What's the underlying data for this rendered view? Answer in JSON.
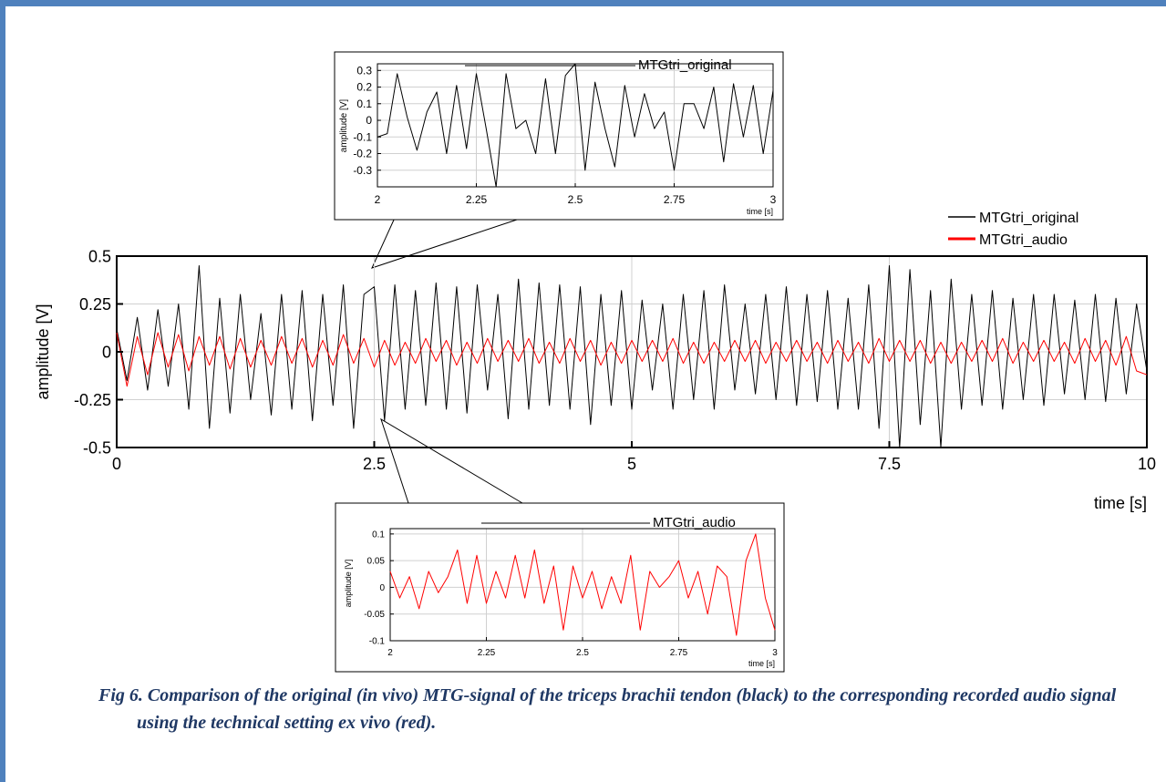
{
  "chart_data": [
    {
      "id": "main",
      "type": "line",
      "title": "",
      "xlabel": "time [s]",
      "ylabel": "amplitude [V]",
      "xlim": [
        0,
        10
      ],
      "ylim": [
        -0.5,
        0.5
      ],
      "xticks": [
        "0",
        "2.5",
        "5",
        "7.5",
        "10"
      ],
      "yticks": [
        "0.5",
        "0.25",
        "0",
        "-0.25",
        "-0.5"
      ],
      "grid": true,
      "legend_position": "top-right",
      "series": [
        {
          "name": "MTGtri_original",
          "color": "#000000",
          "x": [
            0,
            0.1,
            0.2,
            0.3,
            0.4,
            0.5,
            0.6,
            0.7,
            0.8,
            0.9,
            1.0,
            1.1,
            1.2,
            1.3,
            1.4,
            1.5,
            1.6,
            1.7,
            1.8,
            1.9,
            2.0,
            2.1,
            2.2,
            2.3,
            2.4,
            2.5,
            2.6,
            2.7,
            2.8,
            2.9,
            3.0,
            3.1,
            3.2,
            3.3,
            3.4,
            3.5,
            3.6,
            3.7,
            3.8,
            3.9,
            4.0,
            4.1,
            4.2,
            4.3,
            4.4,
            4.5,
            4.6,
            4.7,
            4.8,
            4.9,
            5.0,
            5.1,
            5.2,
            5.3,
            5.4,
            5.5,
            5.6,
            5.7,
            5.8,
            5.9,
            6.0,
            6.1,
            6.2,
            6.3,
            6.4,
            6.5,
            6.6,
            6.7,
            6.8,
            6.9,
            7.0,
            7.1,
            7.2,
            7.3,
            7.4,
            7.5,
            7.6,
            7.7,
            7.8,
            7.9,
            8.0,
            8.1,
            8.2,
            8.3,
            8.4,
            8.5,
            8.6,
            8.7,
            8.8,
            8.9,
            9.0,
            9.1,
            9.2,
            9.3,
            9.4,
            9.5,
            9.6,
            9.7,
            9.8,
            9.9,
            10.0
          ],
          "y": [
            0.12,
            -0.15,
            0.18,
            -0.2,
            0.22,
            -0.18,
            0.25,
            -0.3,
            0.45,
            -0.4,
            0.28,
            -0.32,
            0.3,
            -0.25,
            0.2,
            -0.33,
            0.3,
            -0.3,
            0.32,
            -0.36,
            0.3,
            -0.28,
            0.35,
            -0.4,
            0.3,
            0.34,
            -0.36,
            0.35,
            -0.3,
            0.32,
            -0.28,
            0.36,
            -0.3,
            0.34,
            -0.32,
            0.35,
            -0.2,
            0.3,
            -0.35,
            0.38,
            -0.3,
            0.36,
            -0.28,
            0.35,
            -0.3,
            0.34,
            -0.38,
            0.3,
            -0.28,
            0.32,
            -0.3,
            0.27,
            -0.2,
            0.25,
            -0.3,
            0.3,
            -0.25,
            0.32,
            -0.3,
            0.35,
            -0.2,
            0.25,
            -0.22,
            0.3,
            -0.25,
            0.34,
            -0.28,
            0.3,
            -0.26,
            0.32,
            -0.3,
            0.28,
            -0.3,
            0.35,
            -0.4,
            0.45,
            -0.5,
            0.43,
            -0.38,
            0.32,
            -0.5,
            0.38,
            -0.3,
            0.3,
            -0.28,
            0.32,
            -0.3,
            0.28,
            -0.25,
            0.3,
            -0.28,
            0.3,
            -0.22,
            0.27,
            -0.25,
            0.3,
            -0.26,
            0.28,
            -0.22,
            0.25,
            -0.1
          ]
        },
        {
          "name": "MTGtri_audio",
          "color": "#ff0000",
          "x": [
            0,
            0.1,
            0.2,
            0.3,
            0.4,
            0.5,
            0.6,
            0.7,
            0.8,
            0.9,
            1.0,
            1.1,
            1.2,
            1.3,
            1.4,
            1.5,
            1.6,
            1.7,
            1.8,
            1.9,
            2.0,
            2.1,
            2.2,
            2.3,
            2.4,
            2.5,
            2.6,
            2.7,
            2.8,
            2.9,
            3.0,
            3.1,
            3.2,
            3.3,
            3.4,
            3.5,
            3.6,
            3.7,
            3.8,
            3.9,
            4.0,
            4.1,
            4.2,
            4.3,
            4.4,
            4.5,
            4.6,
            4.7,
            4.8,
            4.9,
            5.0,
            5.1,
            5.2,
            5.3,
            5.4,
            5.5,
            5.6,
            5.7,
            5.8,
            5.9,
            6.0,
            6.1,
            6.2,
            6.3,
            6.4,
            6.5,
            6.6,
            6.7,
            6.8,
            6.9,
            7.0,
            7.1,
            7.2,
            7.3,
            7.4,
            7.5,
            7.6,
            7.7,
            7.8,
            7.9,
            8.0,
            8.1,
            8.2,
            8.3,
            8.4,
            8.5,
            8.6,
            8.7,
            8.8,
            8.9,
            9.0,
            9.1,
            9.2,
            9.3,
            9.4,
            9.5,
            9.6,
            9.7,
            9.8,
            9.9,
            10.0
          ],
          "y": [
            0.1,
            -0.18,
            0.08,
            -0.12,
            0.1,
            -0.08,
            0.09,
            -0.1,
            0.08,
            -0.07,
            0.08,
            -0.09,
            0.07,
            -0.08,
            0.06,
            -0.07,
            0.08,
            -0.06,
            0.07,
            -0.08,
            0.06,
            -0.07,
            0.09,
            -0.06,
            0.07,
            -0.08,
            0.06,
            -0.07,
            0.05,
            -0.06,
            0.07,
            -0.05,
            0.06,
            -0.07,
            0.05,
            -0.06,
            0.07,
            -0.05,
            0.06,
            -0.05,
            0.07,
            -0.06,
            0.05,
            -0.06,
            0.07,
            -0.05,
            0.06,
            -0.07,
            0.05,
            -0.06,
            0.06,
            -0.05,
            0.06,
            -0.05,
            0.07,
            -0.06,
            0.05,
            -0.06,
            0.05,
            -0.05,
            0.06,
            -0.05,
            0.06,
            -0.06,
            0.05,
            -0.05,
            0.06,
            -0.05,
            0.05,
            -0.06,
            0.06,
            -0.05,
            0.05,
            -0.06,
            0.07,
            -0.05,
            0.06,
            -0.05,
            0.06,
            -0.06,
            0.05,
            -0.06,
            0.05,
            -0.05,
            0.06,
            -0.05,
            0.07,
            -0.06,
            0.05,
            -0.05,
            0.06,
            -0.05,
            0.05,
            -0.06,
            0.07,
            -0.05,
            0.06,
            -0.07,
            0.08,
            -0.1,
            -0.12
          ]
        }
      ]
    },
    {
      "id": "inset_original",
      "type": "line",
      "title": "MTGtri_original",
      "xlabel": "time [s]",
      "ylabel": "amplitude [V]",
      "xlim": [
        2,
        3
      ],
      "ylim": [
        -0.4,
        0.34
      ],
      "xticks": [
        "2",
        "2.25",
        "2.5",
        "2.75",
        "3"
      ],
      "yticks": [
        "0.3",
        "0.2",
        "0.1",
        "0",
        "-0.1",
        "-0.2",
        "-0.3"
      ],
      "grid": true,
      "series": [
        {
          "name": "MTGtri_original",
          "color": "#000000",
          "x": [
            2.0,
            2.025,
            2.05,
            2.075,
            2.1,
            2.125,
            2.15,
            2.175,
            2.2,
            2.225,
            2.25,
            2.275,
            2.3,
            2.325,
            2.35,
            2.375,
            2.4,
            2.425,
            2.45,
            2.475,
            2.5,
            2.525,
            2.55,
            2.575,
            2.6,
            2.625,
            2.65,
            2.675,
            2.7,
            2.725,
            2.75,
            2.775,
            2.8,
            2.825,
            2.85,
            2.875,
            2.9,
            2.925,
            2.95,
            2.975,
            3.0
          ],
          "y": [
            -0.1,
            -0.08,
            0.28,
            0.02,
            -0.18,
            0.05,
            0.17,
            -0.2,
            0.21,
            -0.17,
            0.28,
            -0.05,
            -0.4,
            0.28,
            -0.05,
            0.0,
            -0.2,
            0.25,
            -0.2,
            0.27,
            0.34,
            -0.3,
            0.23,
            -0.05,
            -0.28,
            0.21,
            -0.1,
            0.16,
            -0.05,
            0.05,
            -0.3,
            0.1,
            0.1,
            -0.05,
            0.2,
            -0.25,
            0.22,
            -0.1,
            0.21,
            -0.2,
            0.18
          ]
        }
      ]
    },
    {
      "id": "inset_audio",
      "type": "line",
      "title": "MTGtri_audio",
      "xlabel": "time [s]",
      "ylabel": "amplitude [V]",
      "xlim": [
        2,
        3
      ],
      "ylim": [
        -0.1,
        0.11
      ],
      "xticks": [
        "2",
        "2.25",
        "2.5",
        "2.75",
        "3"
      ],
      "yticks": [
        "0.1",
        "0.05",
        "0",
        "-0.05",
        "-0.1"
      ],
      "grid": true,
      "series": [
        {
          "name": "MTGtri_audio",
          "color": "#ff0000",
          "x": [
            2.0,
            2.025,
            2.05,
            2.075,
            2.1,
            2.125,
            2.15,
            2.175,
            2.2,
            2.225,
            2.25,
            2.275,
            2.3,
            2.325,
            2.35,
            2.375,
            2.4,
            2.425,
            2.45,
            2.475,
            2.5,
            2.525,
            2.55,
            2.575,
            2.6,
            2.625,
            2.65,
            2.675,
            2.7,
            2.725,
            2.75,
            2.775,
            2.8,
            2.825,
            2.85,
            2.875,
            2.9,
            2.925,
            2.95,
            2.975,
            3.0
          ],
          "y": [
            0.03,
            -0.02,
            0.02,
            -0.04,
            0.03,
            -0.01,
            0.02,
            0.07,
            -0.03,
            0.06,
            -0.03,
            0.03,
            -0.02,
            0.06,
            -0.02,
            0.07,
            -0.03,
            0.04,
            -0.08,
            0.04,
            -0.02,
            0.03,
            -0.04,
            0.02,
            -0.03,
            0.06,
            -0.08,
            0.03,
            0.0,
            0.02,
            0.05,
            -0.02,
            0.03,
            -0.05,
            0.04,
            0.02,
            -0.09,
            0.05,
            0.1,
            -0.02,
            -0.08
          ]
        }
      ]
    }
  ],
  "caption": {
    "label": "Fig 6.",
    "text": "Comparison of the original (in vivo) MTG-signal of the triceps brachii tendon (black) to the corresponding recorded audio signal using the technical setting ex vivo (red)."
  }
}
